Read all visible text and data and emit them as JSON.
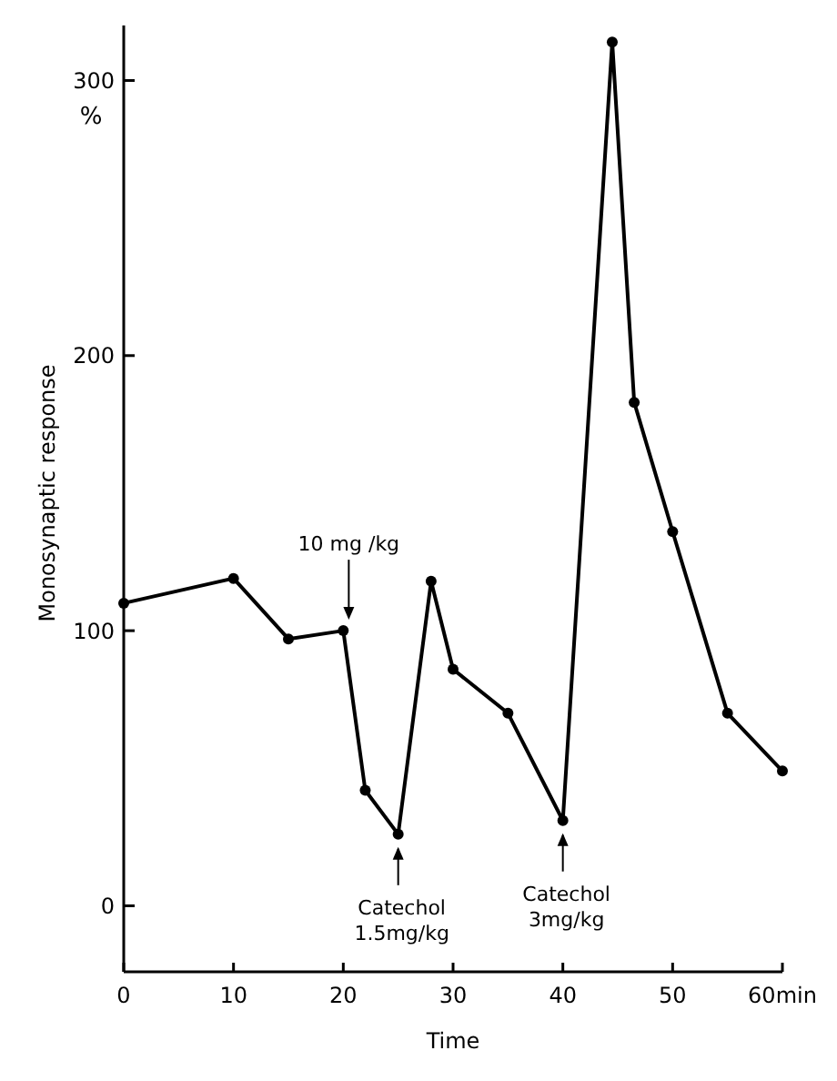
{
  "chart_data": {
    "type": "line",
    "xlabel": "Time",
    "ylabel": "Monosynaptic response",
    "x": [
      0,
      10,
      15,
      20,
      22,
      25,
      28,
      30,
      35,
      40,
      44.5,
      46.5,
      50,
      55,
      60
    ],
    "series": [
      {
        "color": "#000000",
        "values": [
          110,
          119,
          97,
          100,
          42,
          26,
          118,
          86,
          70,
          31,
          314,
          183,
          136,
          70,
          49
        ]
      }
    ],
    "xlim": [
      0,
      60
    ],
    "xticks": [
      0,
      10,
      20,
      30,
      40,
      50,
      {
        "value": 60,
        "label": "60min"
      }
    ],
    "ylim": [
      -24,
      320
    ],
    "yticks": [
      0,
      100,
      200,
      300
    ],
    "annotations": [
      "%",
      {
        "text": "10 mg /kg",
        "x": 20.5,
        "y": 100
      },
      {
        "text": "Catechol\n1.5mg/kg",
        "x": 25,
        "y": 26
      },
      {
        "text": "Catechol\n3mg/kg",
        "x": 40,
        "y": 31
      }
    ],
    "marker": "circle",
    "line_style": "solid",
    "grid": false
  }
}
